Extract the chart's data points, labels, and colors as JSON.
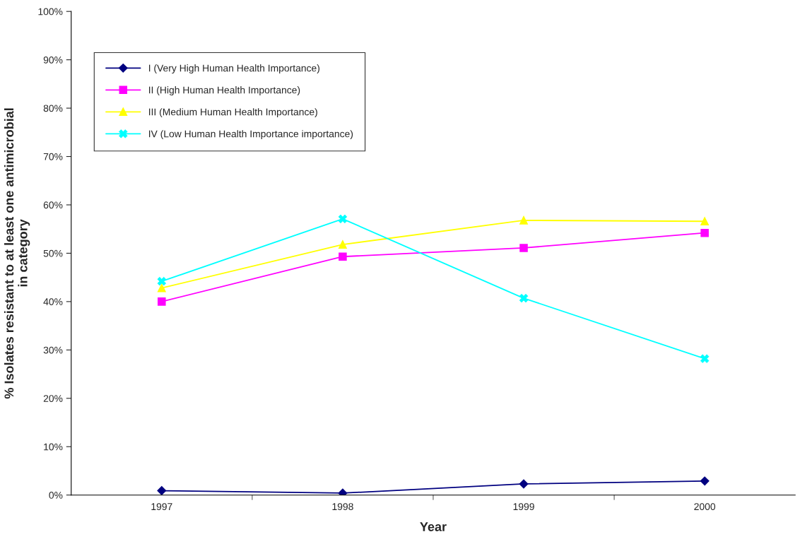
{
  "chart_data": {
    "type": "line",
    "xlabel": "Year",
    "ylabel": "% Isolates resistant to at least one antimicrobial\nin category",
    "categories": [
      "1997",
      "1998",
      "1999",
      "2000"
    ],
    "series": [
      {
        "name": "I (Very High Human Health Importance)",
        "color": "#000080",
        "marker": "diamond",
        "values": [
          0.9,
          0.4,
          2.3,
          2.9
        ]
      },
      {
        "name": "II (High Human Health Importance)",
        "color": "#ff00ff",
        "marker": "square",
        "values": [
          40.0,
          49.3,
          51.1,
          54.2
        ]
      },
      {
        "name": "III (Medium Human Health Importance)",
        "color": "#ffff00",
        "marker": "triangle",
        "values": [
          42.8,
          51.8,
          56.8,
          56.6
        ]
      },
      {
        "name": "IV (Low Human Health Importance importance)",
        "color": "#00ffff",
        "marker": "cross",
        "values": [
          44.2,
          57.1,
          40.7,
          28.2
        ]
      }
    ],
    "ylim": [
      0,
      100
    ],
    "yticks": [
      {
        "value": 0,
        "label": "0%"
      },
      {
        "value": 10,
        "label": "10%"
      },
      {
        "value": 20,
        "label": "20%"
      },
      {
        "value": 30,
        "label": "30%"
      },
      {
        "value": 40,
        "label": "40%"
      },
      {
        "value": 50,
        "label": "50%"
      },
      {
        "value": 60,
        "label": "60%"
      },
      {
        "value": 70,
        "label": "70%"
      },
      {
        "value": 80,
        "label": "80%"
      },
      {
        "value": 90,
        "label": "90%"
      },
      {
        "value": 100,
        "label": "100%"
      }
    ],
    "grid": false,
    "legend": "top left"
  }
}
